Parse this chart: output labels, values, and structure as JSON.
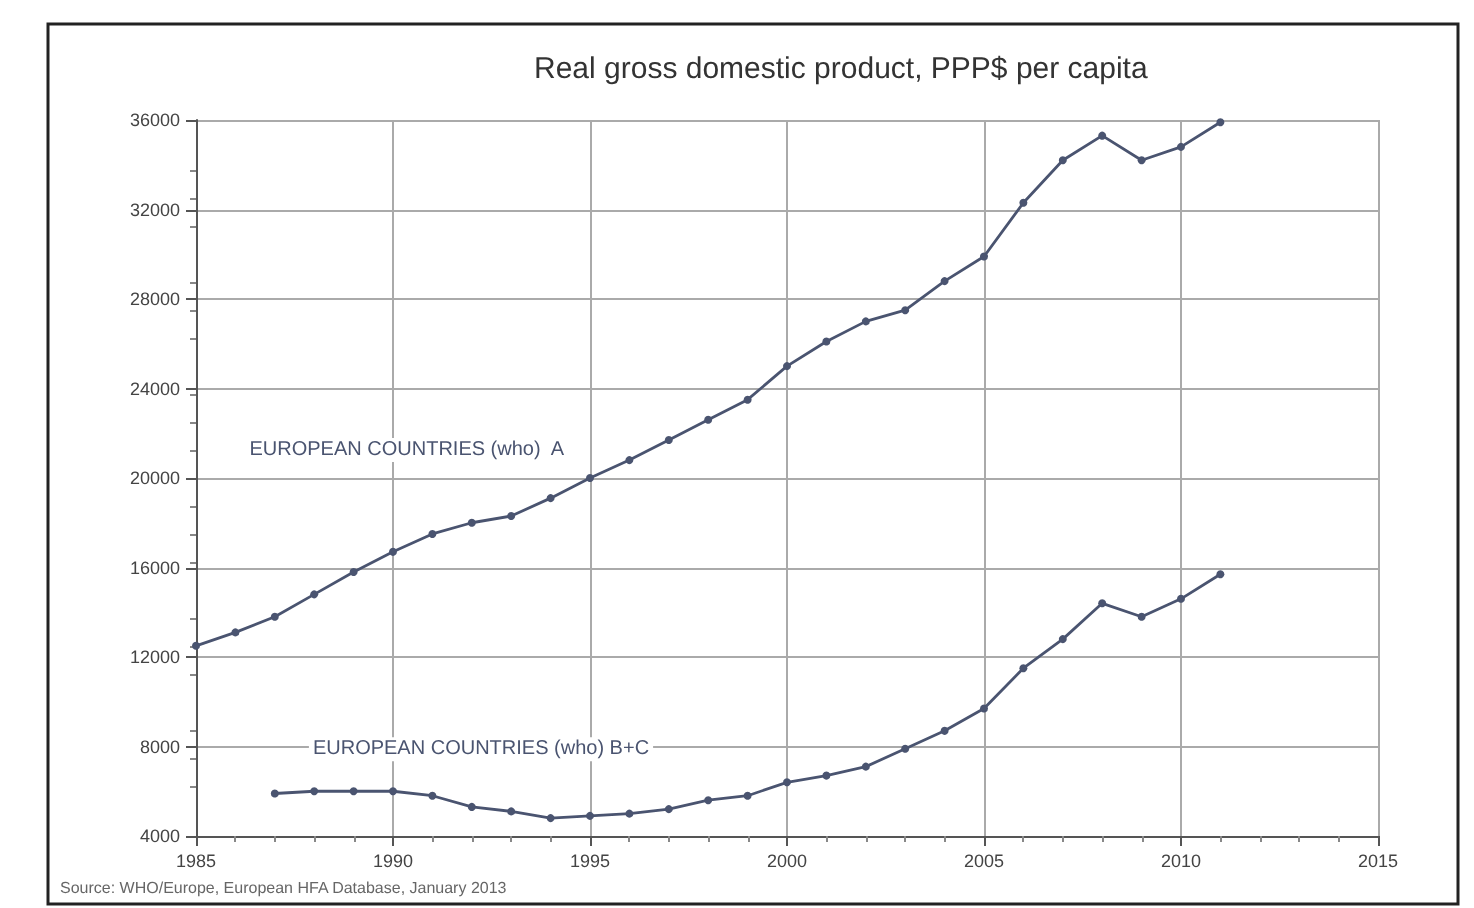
{
  "chart_data": {
    "type": "line",
    "title": "Real gross domestic product, PPP$ per capita",
    "annotations": [
      "Source: WHO/Europe, European HFA Database, January 2013"
    ],
    "series": [
      {
        "name": "EUROPEAN COUNTRIES (who)  A",
        "color": "#4a5470",
        "x": [
          1985,
          1986,
          1987,
          1988,
          1989,
          1990,
          1991,
          1992,
          1993,
          1994,
          1995,
          1996,
          1997,
          1998,
          1999,
          2000,
          2001,
          2002,
          2003,
          2004,
          2005,
          2006,
          2007,
          2008,
          2009,
          2010,
          2011
        ],
        "values": [
          12500,
          13100,
          13800,
          14800,
          15800,
          16700,
          17500,
          18000,
          18300,
          19100,
          20000,
          20800,
          21700,
          22600,
          23500,
          25000,
          26100,
          27000,
          27500,
          28800,
          29900,
          32300,
          34200,
          35300,
          34200,
          34800,
          35900
        ]
      },
      {
        "name": "EUROPEAN COUNTRIES (who) B+C",
        "color": "#4a5470",
        "x": [
          1987,
          1988,
          1989,
          1990,
          1991,
          1992,
          1993,
          1994,
          1995,
          1996,
          1997,
          1998,
          1999,
          2000,
          2001,
          2002,
          2003,
          2004,
          2005,
          2006,
          2007,
          2008,
          2009,
          2010,
          2011
        ],
        "values": [
          5900,
          6000,
          6000,
          6000,
          5800,
          5300,
          5100,
          4800,
          4900,
          5000,
          5200,
          5600,
          5800,
          6400,
          6700,
          7100,
          7900,
          8700,
          9700,
          11500,
          12800,
          14400,
          13800,
          14600,
          15700
        ]
      }
    ],
    "xlim": [
      1985,
      2015
    ],
    "xticks": [
      1985,
      1990,
      1995,
      2000,
      2005,
      2010,
      2015
    ],
    "ylim": [
      4000,
      36000
    ],
    "yticks": [
      4000,
      8000,
      12000,
      16000,
      20000,
      24000,
      28000,
      32000,
      36000
    ],
    "grid": true,
    "marker": "circle",
    "line_style": "solid"
  }
}
